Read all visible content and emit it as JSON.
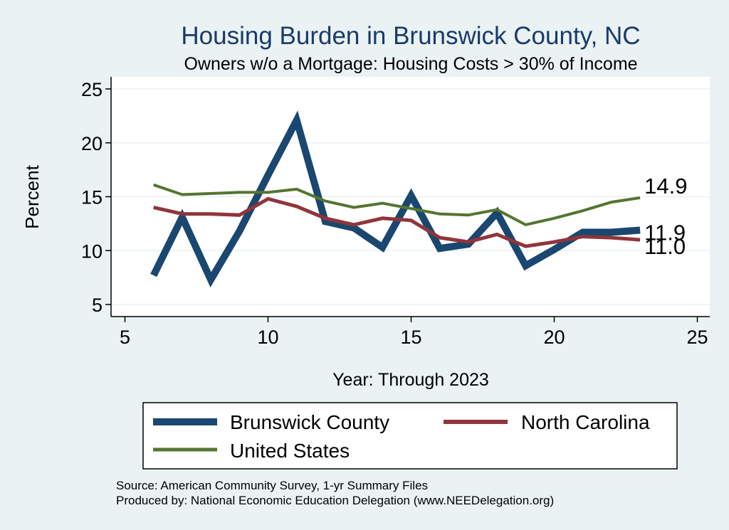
{
  "chart_data": {
    "type": "line",
    "title": "Housing Burden in Brunswick County, NC",
    "subtitle": "Owners w/o a Mortgage: Housing Costs > 30% of Income",
    "xlabel": "Year: Through 2023",
    "ylabel": "Percent",
    "xlim": [
      5,
      25
    ],
    "ylim": [
      4,
      26
    ],
    "xticks": [
      5,
      10,
      15,
      20,
      25
    ],
    "yticks": [
      5,
      10,
      15,
      20,
      25
    ],
    "x": [
      6,
      7,
      8,
      9,
      10,
      11,
      12,
      13,
      14,
      15,
      16,
      17,
      18,
      19,
      20,
      21,
      22,
      23
    ],
    "series": [
      {
        "name": "Brunswick County",
        "color": "#1a476f",
        "values": [
          7.7,
          13.1,
          7.3,
          11.8,
          17.0,
          22.1,
          12.7,
          12.1,
          10.3,
          15.1,
          10.2,
          10.6,
          13.5,
          8.6,
          10.1,
          11.7,
          11.7,
          11.9
        ],
        "end_label": "11.9"
      },
      {
        "name": "North Carolina",
        "color": "#90353b",
        "values": [
          14.0,
          13.4,
          13.4,
          13.3,
          14.8,
          14.1,
          13.0,
          12.4,
          13.0,
          12.8,
          11.2,
          10.8,
          11.5,
          10.4,
          10.8,
          11.3,
          11.2,
          11.0
        ],
        "end_label": "11.0"
      },
      {
        "name": "United States",
        "color": "#55752f",
        "values": [
          16.1,
          15.2,
          15.3,
          15.4,
          15.4,
          15.7,
          14.6,
          14.0,
          14.4,
          13.9,
          13.4,
          13.3,
          13.8,
          12.4,
          13.0,
          13.7,
          14.5,
          14.9
        ],
        "end_label": "14.9"
      }
    ],
    "grid": true,
    "legend": "bottom"
  },
  "legend_items": [
    "Brunswick County",
    "North Carolina",
    "United States"
  ],
  "notes": {
    "source": "Source: American Community Survey, 1-yr Summary Files",
    "produced": "Produced by: National Economic Education Delegation (www.NEEDelegation.org)"
  }
}
